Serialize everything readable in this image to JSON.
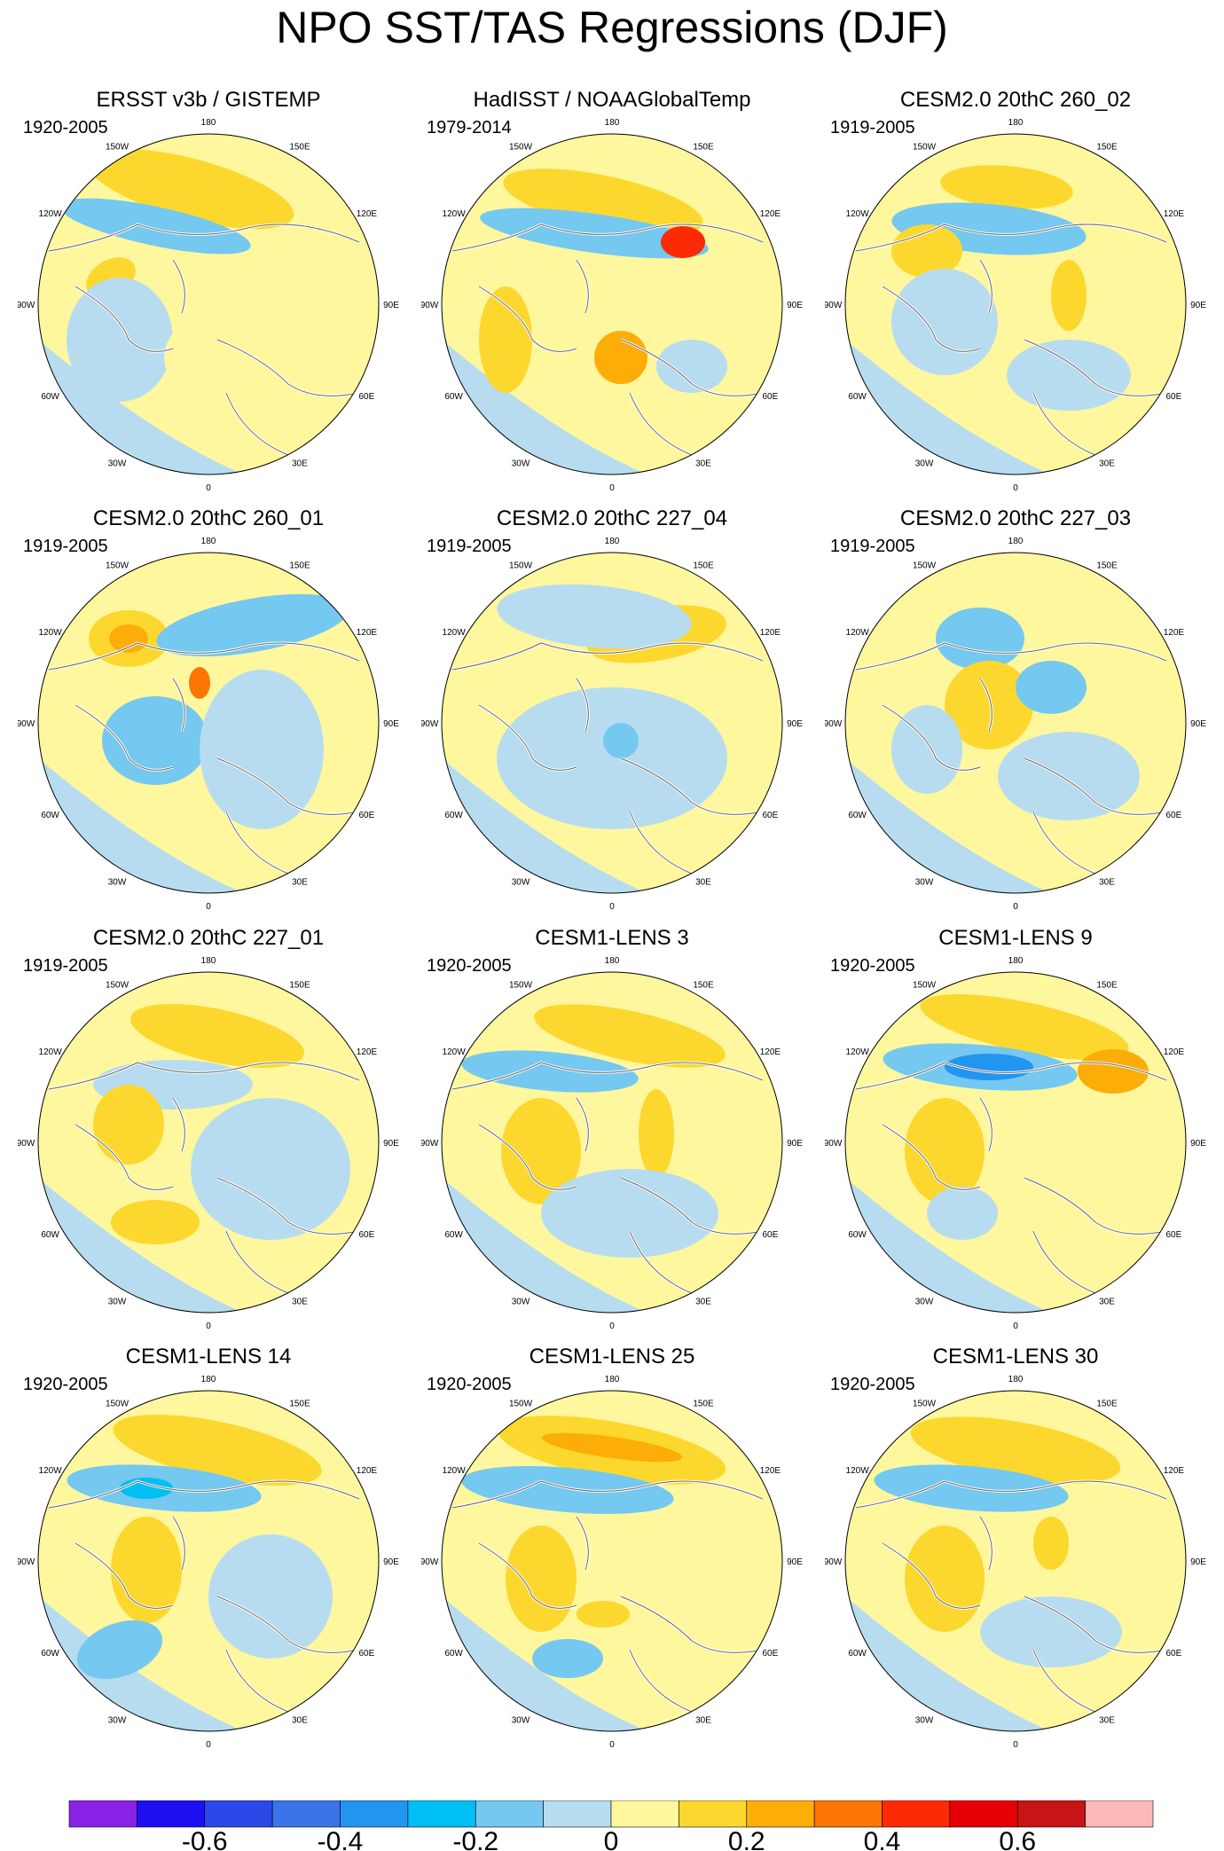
{
  "title": "NPO SST/TAS Regressions (DJF)",
  "lon_labels": [
    "180",
    "150E",
    "120E",
    "90E",
    "60E",
    "30E",
    "0",
    "30W",
    "60W",
    "90W",
    "120W",
    "150W"
  ],
  "panels": [
    {
      "title": "ERSST v3b / GISTEMP",
      "years": "1920-2005"
    },
    {
      "title": "HadISST / NOAAGlobalTemp",
      "years": "1979-2014"
    },
    {
      "title": "CESM2.0 20thC 260_02",
      "years": "1919-2005"
    },
    {
      "title": "CESM2.0 20thC 260_01",
      "years": "1919-2005"
    },
    {
      "title": "CESM2.0 20thC 227_04",
      "years": "1919-2005"
    },
    {
      "title": "CESM2.0 20thC 227_03",
      "years": "1919-2005"
    },
    {
      "title": "CESM2.0 20thC 227_01",
      "years": "1919-2005"
    },
    {
      "title": "CESM1-LENS 3",
      "years": "1920-2005"
    },
    {
      "title": "CESM1-LENS 9",
      "years": "1920-2005"
    },
    {
      "title": "CESM1-LENS 14",
      "years": "1920-2005"
    },
    {
      "title": "CESM1-LENS 25",
      "years": "1920-2005"
    },
    {
      "title": "CESM1-LENS 30",
      "years": "1920-2005"
    }
  ],
  "chart_data": {
    "type": "heatmap",
    "title": "NPO SST/TAS Regressions (DJF)",
    "projection": "polar stereographic, Northern Hemisphere",
    "colorbar": {
      "levels": [
        -0.7,
        -0.6,
        -0.5,
        -0.4,
        -0.3,
        -0.2,
        -0.1,
        0,
        0.1,
        0.2,
        0.3,
        0.4,
        0.5,
        0.6,
        0.7
      ],
      "colors": [
        "#8a22e6",
        "#1d10f0",
        "#2c47e8",
        "#3a74e8",
        "#2295f0",
        "#00bff2",
        "#75c8f0",
        "#b7dcf0",
        "#fff79e",
        "#fcd82e",
        "#fcad08",
        "#fc7606",
        "#fc2a05",
        "#e60005",
        "#c81414",
        "#fcb8b8"
      ],
      "tick_values": [
        -0.6,
        -0.4,
        -0.2,
        0,
        0.2,
        0.4,
        0.6
      ],
      "tick_labels": [
        "-0.6",
        "-0.4",
        "-0.2",
        "0",
        "0.2",
        "0.4",
        "0.6"
      ]
    }
  }
}
